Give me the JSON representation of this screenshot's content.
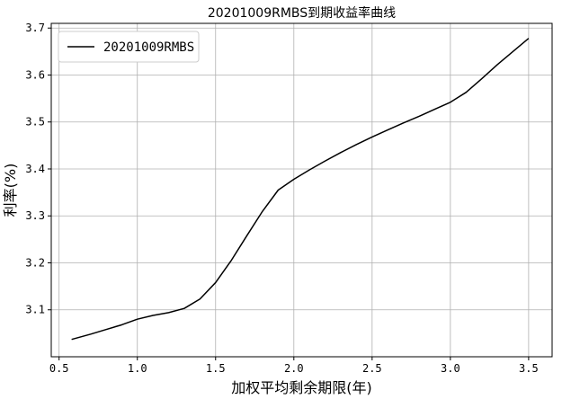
{
  "chart_data": {
    "type": "line",
    "title": "20201009RMBS到期收益率曲线",
    "xlabel": "加权平均剩余期限(年)",
    "ylabel": "利率(%)",
    "xlim": [
      0.45,
      3.65
    ],
    "ylim": [
      3.0,
      3.71
    ],
    "xticks": [
      "0.5",
      "1.0",
      "1.5",
      "2.0",
      "2.5",
      "3.0",
      "3.5"
    ],
    "yticks": [
      "3.1",
      "3.2",
      "3.3",
      "3.4",
      "3.5",
      "3.6",
      "3.7"
    ],
    "grid": true,
    "legend_position": "top-left",
    "series": [
      {
        "name": "20201009RMBS",
        "color": "#000000",
        "x": [
          0.58,
          0.7,
          0.8,
          0.9,
          1.0,
          1.1,
          1.2,
          1.3,
          1.4,
          1.5,
          1.6,
          1.7,
          1.8,
          1.9,
          2.0,
          2.1,
          2.2,
          2.3,
          2.4,
          2.5,
          2.6,
          2.7,
          2.8,
          2.9,
          3.0,
          3.1,
          3.2,
          3.3,
          3.4,
          3.5
        ],
        "y": [
          3.037,
          3.048,
          3.058,
          3.068,
          3.08,
          3.088,
          3.094,
          3.103,
          3.123,
          3.158,
          3.205,
          3.258,
          3.31,
          3.355,
          3.378,
          3.398,
          3.417,
          3.435,
          3.452,
          3.468,
          3.483,
          3.498,
          3.512,
          3.527,
          3.542,
          3.563,
          3.592,
          3.622,
          3.65,
          3.678
        ]
      }
    ]
  }
}
